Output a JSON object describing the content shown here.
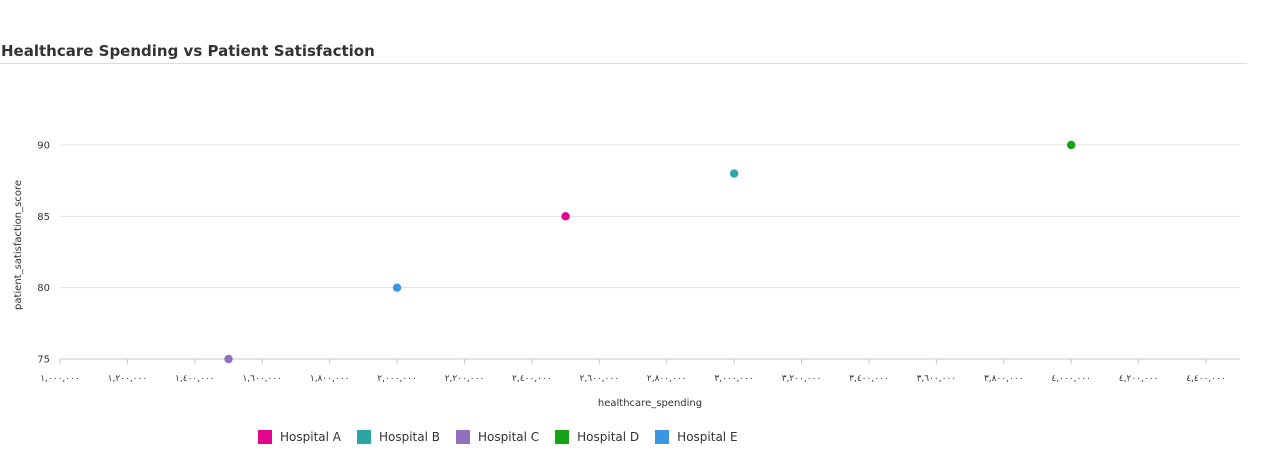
{
  "chart_data": {
    "type": "scatter",
    "title": "Healthcare Spending vs Patient Satisfaction",
    "xlabel": "healthcare_spending",
    "ylabel": "patient_satisfaction_score",
    "xlim": [
      1000000,
      4500000
    ],
    "ylim": [
      75,
      90
    ],
    "x_ticks": [
      1000000,
      1200000,
      1400000,
      1600000,
      1800000,
      2000000,
      2200000,
      2400000,
      2600000,
      2800000,
      3000000,
      3200000,
      3400000,
      3600000,
      3800000,
      4000000,
      4200000,
      4400000
    ],
    "x_tick_labels": [
      "١,٠٠٠,٠٠٠",
      "١,٢٠٠,٠٠٠",
      "١,٤٠٠,٠٠٠",
      "١,٦٠٠,٠٠٠",
      "١,٨٠٠,٠٠٠",
      "٢,٠٠٠,٠٠٠",
      "٢,٢٠٠,٠٠٠",
      "٢,٤٠٠,٠٠٠",
      "٢,٦٠٠,٠٠٠",
      "٢,٨٠٠,٠٠٠",
      "٣,٠٠٠,٠٠٠",
      "٣,٢٠٠,٠٠٠",
      "٣,٤٠٠,٠٠٠",
      "٣,٦٠٠,٠٠٠",
      "٣,٨٠٠,٠٠٠",
      "٤,٠٠٠,٠٠٠",
      "٤,٢٠٠,٠٠٠",
      "٤,٤٠٠,٠٠٠"
    ],
    "y_ticks": [
      75,
      80,
      85,
      90
    ],
    "y_tick_labels": [
      "75",
      "80",
      "85",
      "90"
    ],
    "grid": "horizontal",
    "legend_position": "bottom-left",
    "series": [
      {
        "name": "Hospital A",
        "color": "#e5058a",
        "points": [
          [
            2500000,
            85
          ]
        ]
      },
      {
        "name": "Hospital B",
        "color": "#2ca5a5",
        "points": [
          [
            3000000,
            88
          ]
        ]
      },
      {
        "name": "Hospital C",
        "color": "#9270c0",
        "points": [
          [
            1500000,
            75
          ]
        ]
      },
      {
        "name": "Hospital D",
        "color": "#17a317",
        "points": [
          [
            4000000,
            90
          ]
        ]
      },
      {
        "name": "Hospital E",
        "color": "#3b95e0",
        "points": [
          [
            2000000,
            80
          ]
        ]
      }
    ]
  }
}
